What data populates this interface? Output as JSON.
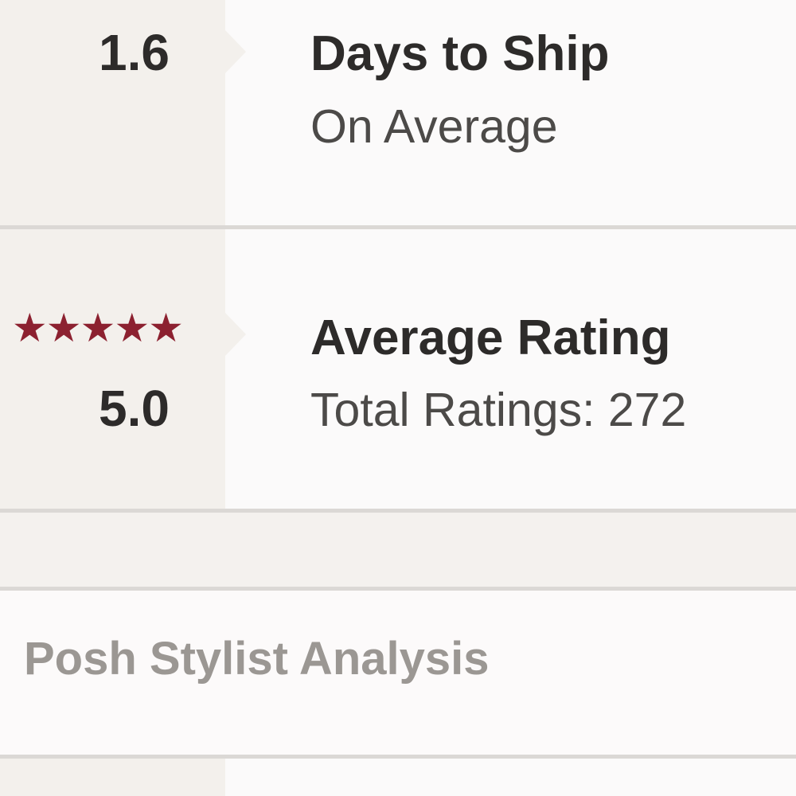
{
  "colors": {
    "left_col_bg": "#f3f0ec",
    "right_bg": "#fbfafa",
    "divider": "#dbd8d5",
    "gap_band_bg": "#f4f1ee",
    "analysis_bg": "#fcfafa",
    "star": "#8c2130",
    "title_text": "#2d2b2a",
    "subtitle_text": "#4c4a48",
    "section_header_text": "#9b9793"
  },
  "stats_section": {
    "rows": [
      {
        "value": "1.6",
        "title": "Days to Ship",
        "subtitle": "On Average"
      },
      {
        "value": "5.0",
        "stars": "★★★★★",
        "star_count": 5,
        "title": "Average Rating",
        "subtitle": "Total Ratings: 272",
        "total_ratings": 272
      }
    ]
  },
  "analysis_section": {
    "header": "Posh Stylist Analysis"
  }
}
